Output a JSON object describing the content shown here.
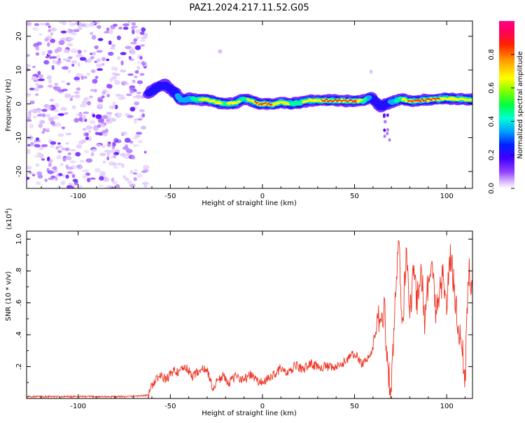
{
  "figure": {
    "title": "PAZ1.2024.217.11.52.G05"
  },
  "chart_data": [
    {
      "type": "heatmap",
      "xlabel": "Height of straight line (km)",
      "ylabel": "Frequency (Hz)",
      "xlim": [
        -128,
        114
      ],
      "ylim": [
        -25,
        24.5
      ],
      "xticks": [
        -100,
        -50,
        0,
        50,
        100
      ],
      "yticks": [
        -20,
        -10,
        0,
        10,
        20
      ],
      "colorbar": {
        "label": "Normalized spectral amplitude",
        "range": [
          0.0,
          1.0
        ],
        "ticks": [
          0.0,
          0.2,
          0.4,
          0.6,
          0.8
        ],
        "colors": [
          "#ffffff",
          "#d9b8ff",
          "#9040ff",
          "#4000ff",
          "#0020ff",
          "#00a0ff",
          "#00ffd0",
          "#00ff40",
          "#80ff00",
          "#ffff00",
          "#ffa000",
          "#ff2000",
          "#ff0060",
          "#ff0080"
        ]
      },
      "noise_region_x": [
        -128,
        -63
      ],
      "ridge": {
        "x": [
          -62,
          -57,
          -53,
          -48,
          -44,
          -40,
          -35,
          -30,
          -25,
          -20,
          -15,
          -10,
          -6,
          -2,
          2,
          6,
          10,
          15,
          20,
          25,
          30,
          40,
          50,
          55,
          58,
          61,
          64,
          67,
          70,
          75,
          80,
          90,
          100,
          110,
          114
        ],
        "y": [
          3,
          5,
          5.5,
          3.5,
          1,
          1.5,
          1.3,
          1.2,
          0.5,
          0,
          0.2,
          1.5,
          1,
          0,
          0,
          -0.2,
          0.5,
          0,
          0.3,
          1,
          1,
          1,
          0.8,
          1,
          2,
          1,
          -1,
          0,
          0.5,
          1.5,
          0.8,
          1.2,
          1.6,
          1.3,
          1.3
        ],
        "amplitude": [
          0.35,
          0.4,
          0.4,
          0.35,
          0.55,
          0.55,
          0.7,
          0.8,
          0.75,
          0.7,
          0.8,
          0.65,
          0.8,
          0.85,
          0.9,
          0.8,
          0.8,
          0.7,
          0.7,
          0.75,
          0.8,
          0.9,
          0.85,
          0.7,
          0.45,
          0.4,
          0.3,
          0.35,
          0.5,
          0.7,
          0.85,
          0.85,
          0.8,
          0.8,
          0.7
        ]
      }
    },
    {
      "type": "line",
      "xlabel": "Height of straight line (km)",
      "ylabel": "SNR (10 * v/v)",
      "multiplier": "(x10",
      "multiplier_exp": "4",
      "multiplier_close": ")",
      "xlim": [
        -128,
        114
      ],
      "ylim": [
        0,
        1.05
      ],
      "xticks": [
        -100,
        -50,
        0,
        50,
        100
      ],
      "yticks": [
        0.2,
        0.4,
        0.6,
        0.8,
        1.0
      ],
      "yticklabels": [
        ".2",
        ".4",
        ".6",
        ".8",
        "1.0"
      ],
      "color": "#ee3322",
      "series": [
        {
          "x": [
            -128,
            -110,
            -90,
            -75,
            -62,
            -59,
            -56,
            -52,
            -48,
            -45,
            -42,
            -38,
            -34,
            -30,
            -27,
            -24,
            -21,
            -18,
            -14,
            -10,
            -6,
            -2,
            2,
            6,
            10,
            14,
            18,
            22,
            26,
            30,
            34,
            38,
            42,
            46,
            50,
            54,
            57,
            60,
            62,
            64,
            66,
            68,
            70,
            72,
            74,
            76,
            78,
            80,
            82,
            84,
            86,
            88,
            90,
            92,
            94,
            96,
            98,
            100,
            102,
            104,
            106,
            108,
            110,
            112,
            114
          ],
          "y": [
            0.012,
            0.011,
            0.012,
            0.011,
            0.02,
            0.1,
            0.14,
            0.12,
            0.18,
            0.16,
            0.2,
            0.14,
            0.18,
            0.18,
            0.06,
            0.12,
            0.14,
            0.1,
            0.14,
            0.12,
            0.15,
            0.1,
            0.11,
            0.15,
            0.19,
            0.15,
            0.21,
            0.18,
            0.22,
            0.2,
            0.2,
            0.19,
            0.2,
            0.25,
            0.28,
            0.22,
            0.25,
            0.3,
            0.52,
            0.44,
            0.58,
            0.2,
            0.05,
            0.6,
            1.0,
            0.45,
            0.9,
            0.55,
            0.78,
            0.62,
            0.85,
            0.5,
            0.75,
            0.82,
            0.55,
            0.7,
            0.75,
            0.6,
            0.88,
            0.72,
            0.45,
            0.35,
            0.12,
            0.85,
            0.62
          ]
        }
      ]
    }
  ]
}
